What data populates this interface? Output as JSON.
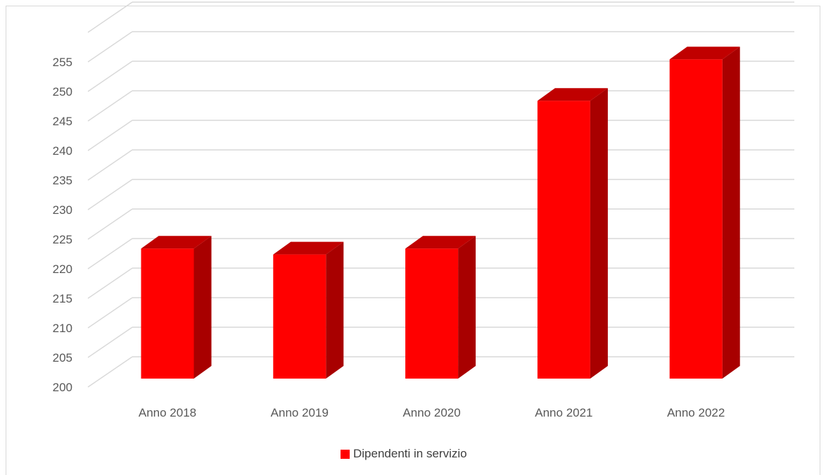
{
  "chart_data": {
    "type": "bar",
    "style": "3d-column",
    "title": "",
    "xlabel": "",
    "ylabel": "",
    "categories": [
      "Anno 2018",
      "Anno 2019",
      "Anno 2020",
      "Anno 2021",
      "Anno 2022"
    ],
    "series": [
      {
        "name": "Dipendenti in servizio",
        "values": [
          222,
          221,
          222,
          247,
          254
        ],
        "color": "#ff0000"
      }
    ],
    "ylim": [
      200,
      260
    ],
    "yticks": [
      200,
      205,
      210,
      215,
      220,
      225,
      230,
      235,
      240,
      245,
      250,
      255
    ],
    "grid": true,
    "legend": "bottom"
  },
  "legend": {
    "label": "Dipendenti in servizio",
    "color": "#ff0000"
  },
  "colors": {
    "bar_front": "#ff0000",
    "bar_side": "#a80000",
    "bar_top": "#c00000",
    "grid": "#d9d9d9",
    "text": "#595959"
  }
}
